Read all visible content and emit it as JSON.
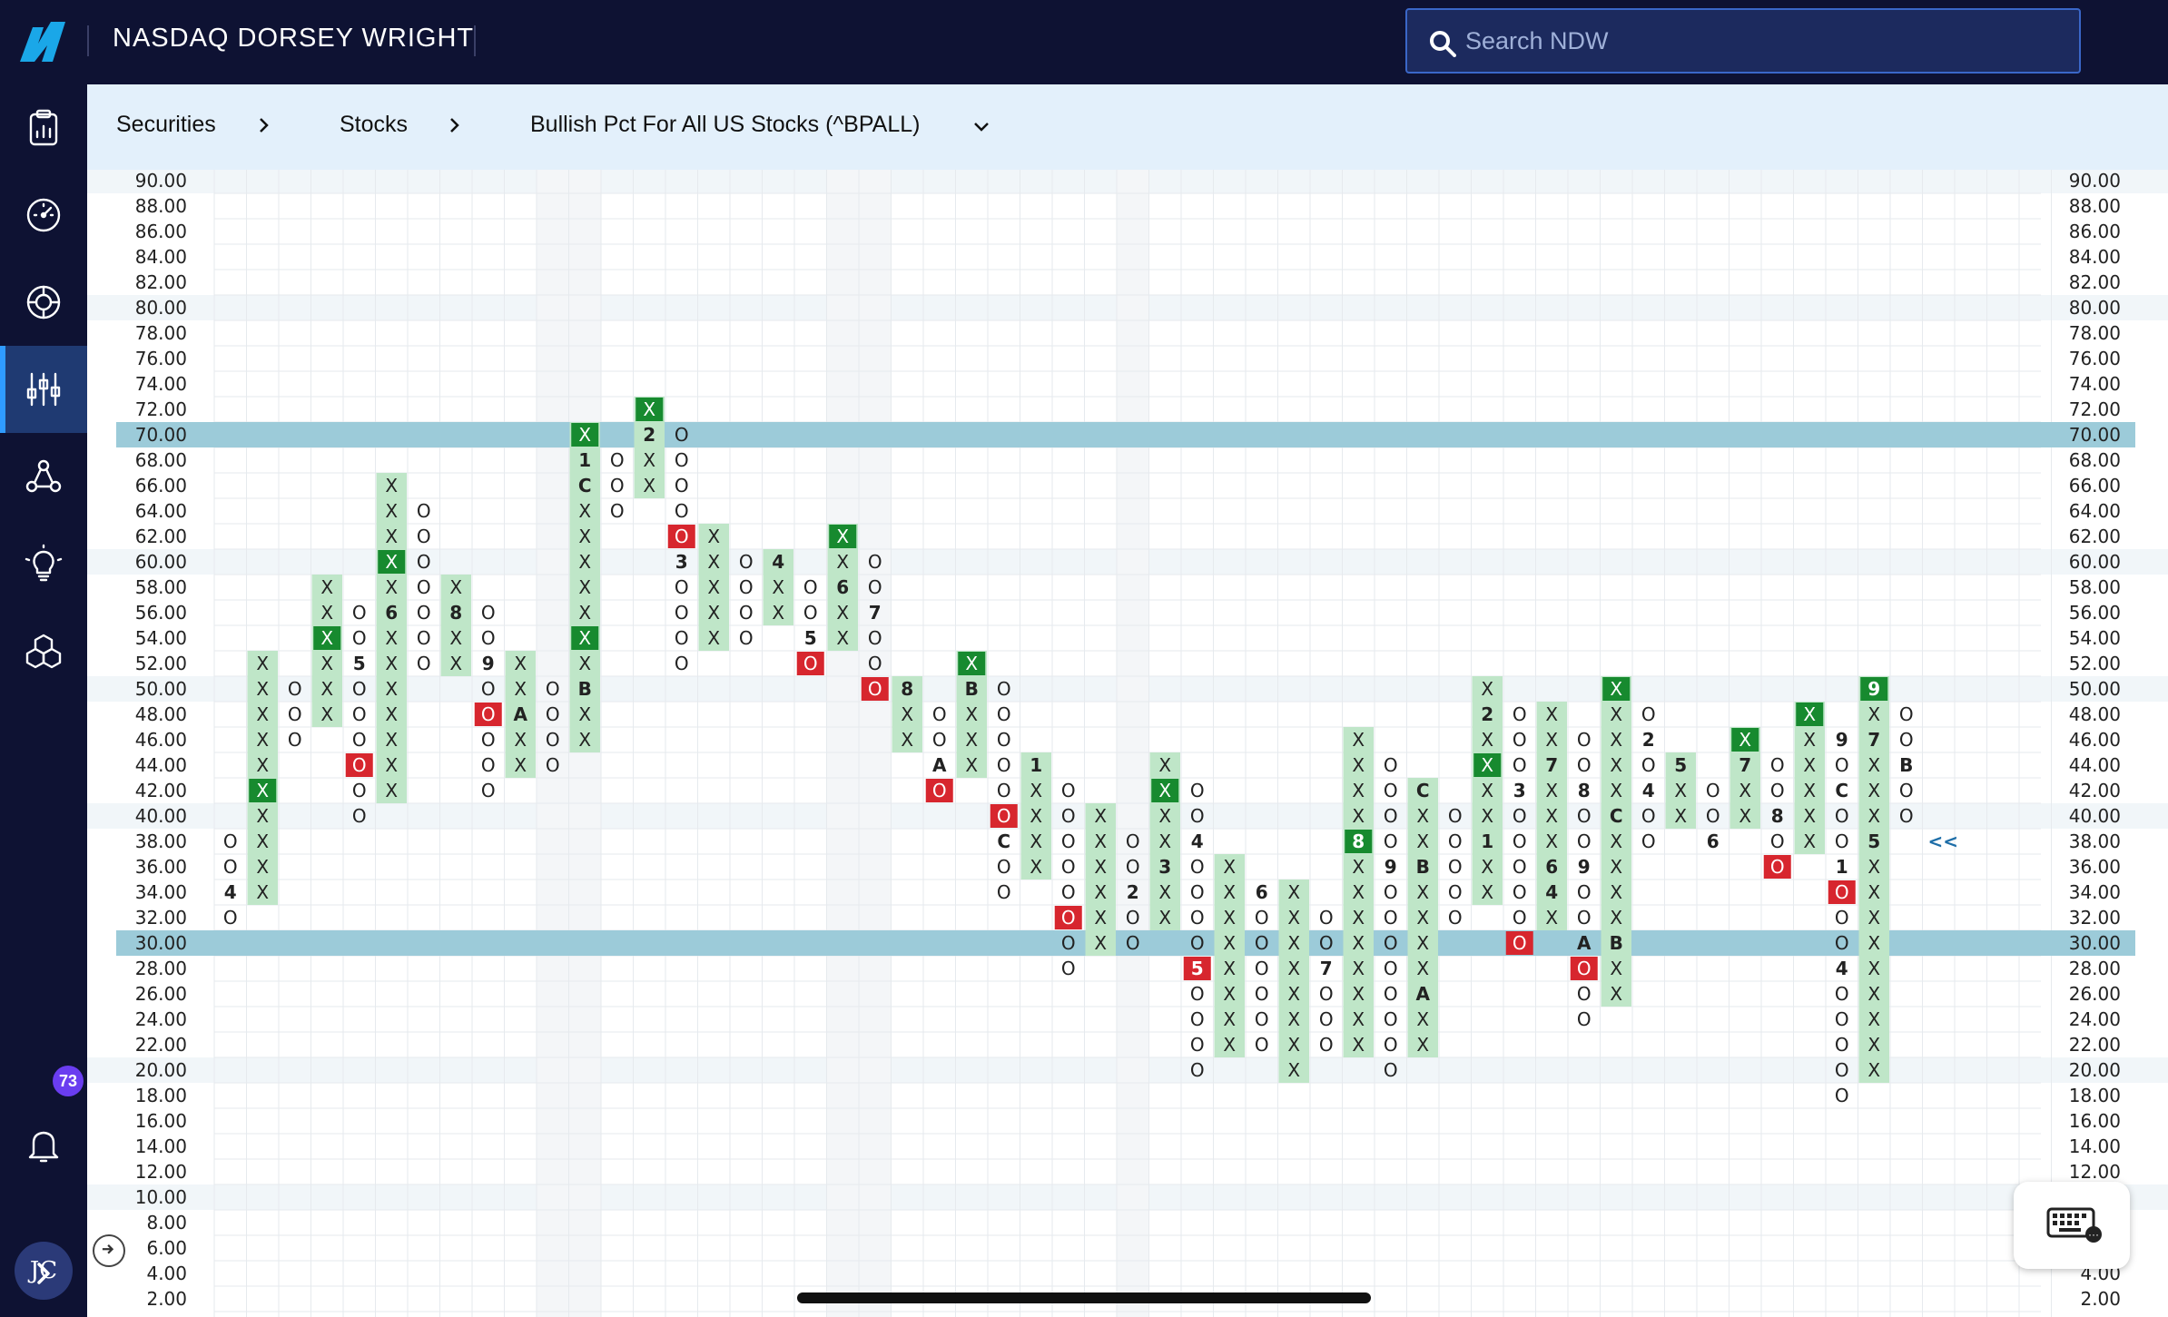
{
  "header": {
    "brand": "NASDAQ DORSEY WRIGHT",
    "search_placeholder": "Search NDW"
  },
  "sidebar": {
    "items": [
      {
        "name": "clipboard-chart-icon",
        "active": false
      },
      {
        "name": "gauge-icon",
        "active": false
      },
      {
        "name": "target-icon",
        "active": false
      },
      {
        "name": "sliders-icon",
        "active": true
      },
      {
        "name": "network-icon",
        "active": false
      },
      {
        "name": "lightbulb-icon",
        "active": false
      },
      {
        "name": "cubes-icon",
        "active": false
      }
    ],
    "notifications_count": "73",
    "avatar_initials": "JC",
    "expand_icon": "chevron-right-icon"
  },
  "breadcrumb": {
    "items": [
      "Securities",
      "Stocks",
      "Bullish Pct For All US Stocks (^BPALL)"
    ]
  },
  "colors": {
    "x_fill": "#bfe6c8",
    "x_highlight": "#178a2f",
    "o_highlight": "#d7262e",
    "band": "#9ccbd9",
    "accent": "#2f9bff"
  },
  "chart_data": {
    "type": "point-and-figure",
    "box_size": 2,
    "y_range": [
      2,
      90
    ],
    "reference_lines": [
      30,
      70
    ],
    "last_marker": "<<",
    "columns": [
      {
        "t": "O",
        "hi": 38,
        "lo": 32,
        "m": {
          "34": "4"
        }
      },
      {
        "t": "X",
        "hi": 52,
        "lo": 34,
        "h": [
          42
        ]
      },
      {
        "t": "O",
        "hi": 50,
        "lo": 46
      },
      {
        "t": "X",
        "hi": 58,
        "lo": 48,
        "h": [
          54
        ]
      },
      {
        "t": "O",
        "hi": 56,
        "lo": 40,
        "m": {
          "52": "5"
        },
        "r": [
          44
        ]
      },
      {
        "t": "X",
        "hi": 66,
        "lo": 42,
        "m": {
          "56": "6"
        },
        "h": [
          60
        ]
      },
      {
        "t": "O",
        "hi": 64,
        "lo": 52
      },
      {
        "t": "X",
        "hi": 58,
        "lo": 52,
        "m": {
          "56": "8"
        }
      },
      {
        "t": "O",
        "hi": 56,
        "lo": 42,
        "m": {
          "52": "9"
        },
        "r": [
          48
        ]
      },
      {
        "t": "X",
        "hi": 52,
        "lo": 44,
        "m": {
          "48": "A"
        }
      },
      {
        "t": "O",
        "hi": 50,
        "lo": 44
      },
      {
        "t": "X",
        "hi": 70,
        "lo": 46,
        "m": {
          "50": "B",
          "66": "C",
          "68": "1"
        },
        "h": [
          54,
          70
        ]
      },
      {
        "t": "O",
        "hi": 68,
        "lo": 64
      },
      {
        "t": "X",
        "hi": 72,
        "lo": 66,
        "m": {
          "70": "2"
        },
        "h": [
          72
        ]
      },
      {
        "t": "O",
        "hi": 70,
        "lo": 52,
        "m": {
          "60": "3"
        },
        "r": [
          62
        ]
      },
      {
        "t": "X",
        "hi": 62,
        "lo": 54
      },
      {
        "t": "O",
        "hi": 60,
        "lo": 54
      },
      {
        "t": "X",
        "hi": 60,
        "lo": 56,
        "m": {
          "60": "4"
        }
      },
      {
        "t": "O",
        "hi": 58,
        "lo": 52,
        "m": {
          "54": "5"
        },
        "r": [
          52
        ]
      },
      {
        "t": "X",
        "hi": 62,
        "lo": 54,
        "m": {
          "58": "6"
        },
        "h": [
          62
        ]
      },
      {
        "t": "O",
        "hi": 60,
        "lo": 50,
        "m": {
          "56": "7"
        },
        "r": [
          50
        ]
      },
      {
        "t": "X",
        "hi": 50,
        "lo": 46,
        "m": {
          "50": "8"
        }
      },
      {
        "t": "O",
        "hi": 48,
        "lo": 42,
        "m": {
          "44": "A"
        },
        "r": [
          42
        ]
      },
      {
        "t": "X",
        "hi": 52,
        "lo": 44,
        "m": {
          "50": "B"
        },
        "h": [
          52
        ]
      },
      {
        "t": "O",
        "hi": 50,
        "lo": 34,
        "m": {
          "38": "C"
        },
        "r": [
          40
        ]
      },
      {
        "t": "X",
        "hi": 44,
        "lo": 36,
        "m": {
          "44": "1"
        }
      },
      {
        "t": "O",
        "hi": 42,
        "lo": 28,
        "r": [
          32
        ]
      },
      {
        "t": "X",
        "hi": 40,
        "lo": 30
      },
      {
        "t": "O",
        "hi": 38,
        "lo": 30,
        "m": {
          "34": "2"
        }
      },
      {
        "t": "X",
        "hi": 44,
        "lo": 32,
        "m": {
          "36": "3"
        },
        "h": [
          42
        ]
      },
      {
        "t": "O",
        "hi": 42,
        "lo": 20,
        "m": {
          "38": "4",
          "28": "5"
        },
        "r": [
          28
        ]
      },
      {
        "t": "X",
        "hi": 36,
        "lo": 22
      },
      {
        "t": "O",
        "hi": 34,
        "lo": 22,
        "m": {
          "34": "6"
        }
      },
      {
        "t": "X",
        "hi": 34,
        "lo": 20
      },
      {
        "t": "O",
        "hi": 32,
        "lo": 22,
        "m": {
          "28": "7"
        }
      },
      {
        "t": "X",
        "hi": 46,
        "lo": 22,
        "m": {
          "38": "8"
        },
        "h": [
          38
        ]
      },
      {
        "t": "O",
        "hi": 44,
        "lo": 20,
        "m": {
          "36": "9"
        }
      },
      {
        "t": "X",
        "hi": 42,
        "lo": 22,
        "m": {
          "42": "C",
          "36": "B",
          "26": "A"
        }
      },
      {
        "t": "O",
        "hi": 40,
        "lo": 32
      },
      {
        "t": "X",
        "hi": 50,
        "lo": 34,
        "m": {
          "48": "2",
          "38": "1"
        },
        "h": [
          44
        ]
      },
      {
        "t": "O",
        "hi": 48,
        "lo": 30,
        "m": {
          "42": "3"
        },
        "r": [
          30
        ]
      },
      {
        "t": "X",
        "hi": 48,
        "lo": 32,
        "m": {
          "44": "7",
          "36": "6",
          "34": "4"
        }
      },
      {
        "t": "O",
        "hi": 46,
        "lo": 24,
        "m": {
          "42": "8",
          "36": "9",
          "30": "A"
        },
        "r": [
          28
        ]
      },
      {
        "t": "X",
        "hi": 50,
        "lo": 26,
        "m": {
          "40": "C",
          "30": "B"
        },
        "h": [
          50
        ]
      },
      {
        "t": "O",
        "hi": 48,
        "lo": 38,
        "m": {
          "46": "2",
          "42": "4"
        }
      },
      {
        "t": "X",
        "hi": 44,
        "lo": 40,
        "m": {
          "44": "5"
        }
      },
      {
        "t": "O",
        "hi": 42,
        "lo": 38,
        "m": {
          "38": "6"
        }
      },
      {
        "t": "X",
        "hi": 46,
        "lo": 40,
        "m": {
          "44": "7"
        },
        "h": [
          46
        ]
      },
      {
        "t": "O",
        "hi": 44,
        "lo": 36,
        "m": {
          "40": "8"
        },
        "r": [
          36
        ]
      },
      {
        "t": "X",
        "hi": 48,
        "lo": 38,
        "h": [
          48
        ]
      },
      {
        "t": "O",
        "hi": 46,
        "lo": 18,
        "m": {
          "46": "9",
          "42": "C",
          "36": "1",
          "28": "4"
        },
        "r": [
          34
        ]
      },
      {
        "t": "X",
        "hi": 50,
        "lo": 20,
        "m": {
          "50": "9",
          "46": "7",
          "38": "5"
        },
        "h": [
          50
        ]
      },
      {
        "t": "O",
        "hi": 48,
        "lo": 40,
        "m": {
          "44": "B"
        }
      }
    ]
  }
}
